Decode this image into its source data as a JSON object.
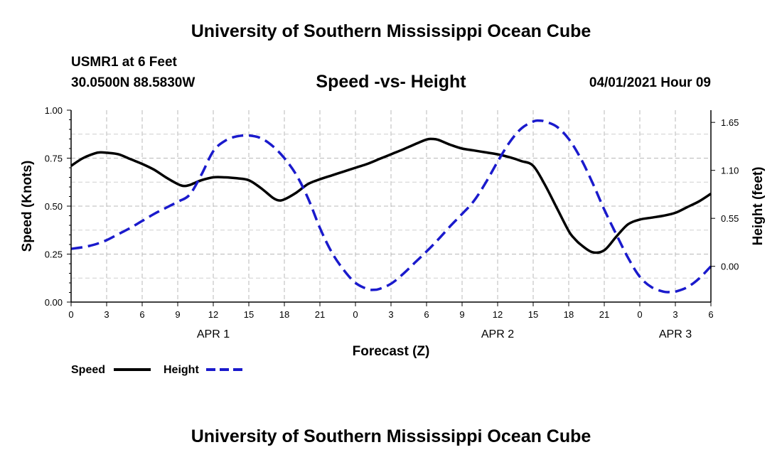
{
  "header": {
    "top_title": "University of Southern Mississippi Ocean Cube",
    "station": "USMR1 at 6 Feet",
    "coords": "30.0500N  88.5830W",
    "datetime": "04/01/2021 Hour 09",
    "bottom_title": "University of Southern Mississippi Ocean Cube"
  },
  "chart_data": {
    "type": "line",
    "title": "Speed -vs- Height",
    "xlabel": "Forecast (Z)",
    "ylabel": "Speed (Knots)",
    "y2label": "Height (feet)",
    "xlim": [
      0,
      54
    ],
    "ylim": [
      0,
      1
    ],
    "y2lim": [
      -0.41,
      1.79
    ],
    "grid": true,
    "legend_position": "bottom-left",
    "x_ticks": [
      0,
      3,
      6,
      9,
      12,
      15,
      18,
      21,
      24,
      27,
      30,
      33,
      36,
      39,
      42,
      45,
      48,
      51,
      54
    ],
    "x_tick_labels": [
      "0",
      "3",
      "6",
      "9",
      "12",
      "15",
      "18",
      "21",
      "0",
      "3",
      "6",
      "9",
      "12",
      "15",
      "18",
      "21",
      "0",
      "3",
      "6"
    ],
    "date_labels": [
      {
        "x": 12,
        "label": "APR 1"
      },
      {
        "x": 36,
        "label": "APR 2"
      },
      {
        "x": 51,
        "label": "APR 3"
      }
    ],
    "y_ticks": [
      0.0,
      0.25,
      0.5,
      0.75,
      1.0
    ],
    "y_tick_labels": [
      "0.00",
      "0.25",
      "0.50",
      "0.75",
      "1.00"
    ],
    "y2_ticks": [
      0.0,
      0.55,
      1.1,
      1.65
    ],
    "y2_tick_labels": [
      "0.00",
      "0.55",
      "1.10",
      "1.65"
    ],
    "series": [
      {
        "name": "Speed",
        "axis": "left",
        "color": "#000000",
        "style": "solid",
        "x": [
          0,
          1,
          2,
          2.5,
          3,
          4,
          5,
          6,
          7,
          8,
          9,
          9.5,
          10,
          11,
          12,
          13,
          14,
          15,
          16,
          17,
          17.5,
          18,
          19,
          20,
          21,
          22,
          23,
          24,
          25,
          26,
          27,
          28,
          29,
          30,
          30.5,
          31,
          32,
          33,
          34,
          35,
          36,
          37,
          38,
          39,
          40,
          41,
          42,
          42.5,
          43,
          44,
          45,
          46,
          47,
          48,
          49,
          50,
          51,
          52,
          53,
          54
        ],
        "values": [
          0.71,
          0.75,
          0.775,
          0.78,
          0.778,
          0.77,
          0.745,
          0.72,
          0.69,
          0.65,
          0.615,
          0.605,
          0.61,
          0.635,
          0.65,
          0.65,
          0.645,
          0.635,
          0.595,
          0.545,
          0.53,
          0.535,
          0.57,
          0.615,
          0.64,
          0.66,
          0.68,
          0.7,
          0.72,
          0.745,
          0.77,
          0.795,
          0.822,
          0.847,
          0.85,
          0.845,
          0.82,
          0.8,
          0.79,
          0.78,
          0.77,
          0.755,
          0.735,
          0.71,
          0.61,
          0.49,
          0.37,
          0.33,
          0.3,
          0.26,
          0.27,
          0.34,
          0.405,
          0.43,
          0.44,
          0.45,
          0.465,
          0.495,
          0.525,
          0.565
        ]
      },
      {
        "name": "Height",
        "axis": "right",
        "color": "#1a1acc",
        "style": "dashed",
        "x": [
          0,
          1,
          2,
          3,
          4,
          5,
          6,
          7,
          8,
          9,
          10,
          11,
          12,
          13,
          14,
          15,
          16,
          17,
          18,
          19,
          20,
          21,
          22,
          23,
          24,
          25,
          25.5,
          26,
          27,
          28,
          29,
          30,
          31,
          32,
          33,
          34,
          35,
          36,
          37,
          38,
          39,
          39.5,
          40,
          41,
          42,
          43,
          44,
          45,
          46,
          47,
          48,
          49,
          50,
          50.5,
          51,
          52,
          53,
          54
        ],
        "values": [
          0.2,
          0.22,
          0.25,
          0.3,
          0.37,
          0.44,
          0.52,
          0.6,
          0.67,
          0.74,
          0.82,
          1.05,
          1.32,
          1.44,
          1.49,
          1.5,
          1.47,
          1.38,
          1.24,
          1.05,
          0.78,
          0.44,
          0.16,
          -0.04,
          -0.19,
          -0.26,
          -0.27,
          -0.26,
          -0.2,
          -0.09,
          0.04,
          0.17,
          0.31,
          0.46,
          0.6,
          0.75,
          0.96,
          1.2,
          1.42,
          1.58,
          1.66,
          1.67,
          1.66,
          1.6,
          1.46,
          1.24,
          0.96,
          0.65,
          0.37,
          0.1,
          -0.12,
          -0.24,
          -0.29,
          -0.295,
          -0.29,
          -0.24,
          -0.14,
          0.0
        ]
      }
    ]
  }
}
